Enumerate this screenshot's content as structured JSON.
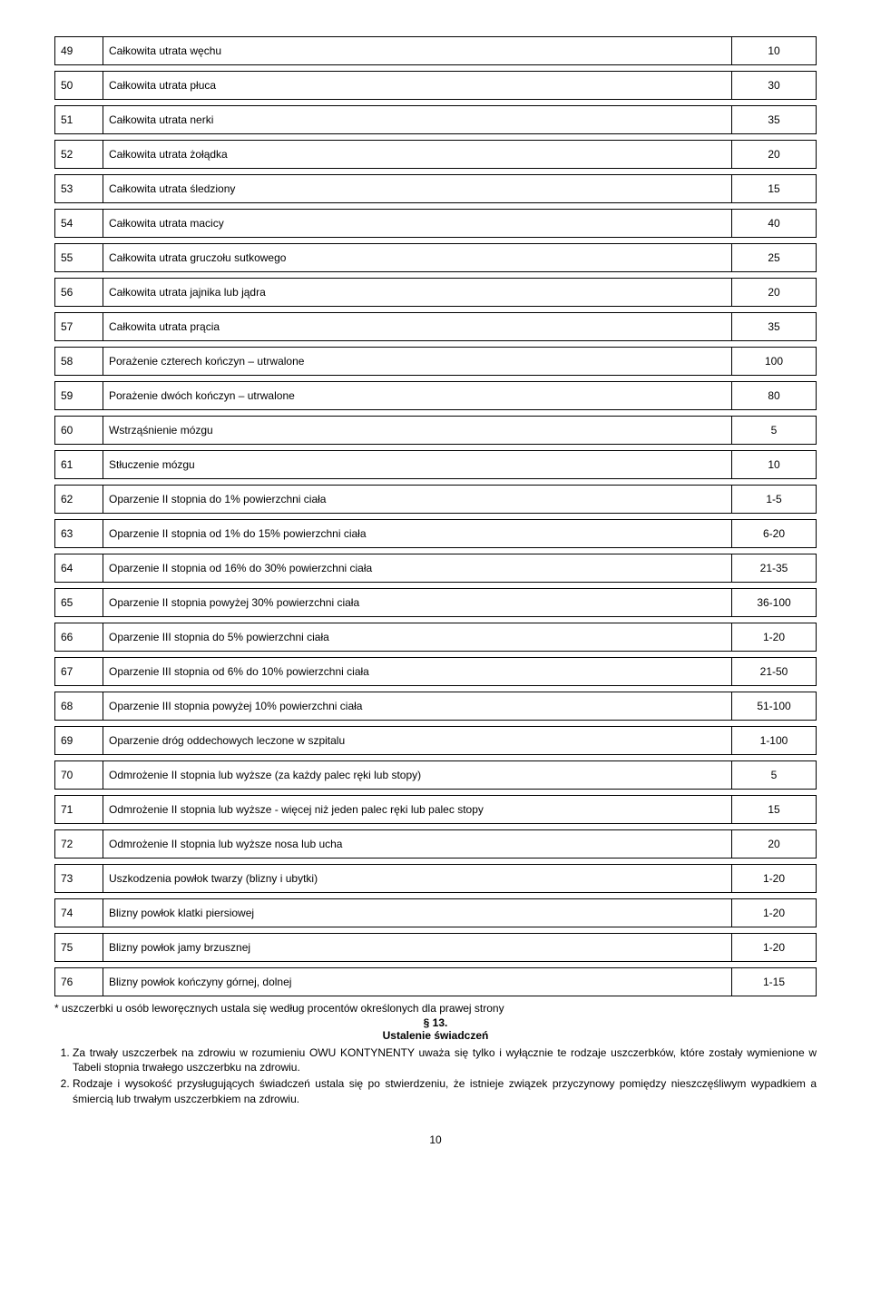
{
  "rows": [
    {
      "n": "49",
      "d": "Całkowita utrata węchu",
      "v": "10"
    },
    {
      "n": "50",
      "d": "Całkowita utrata płuca",
      "v": "30"
    },
    {
      "n": "51",
      "d": "Całkowita utrata nerki",
      "v": "35"
    },
    {
      "n": "52",
      "d": "Całkowita utrata żołądka",
      "v": "20"
    },
    {
      "n": "53",
      "d": "Całkowita utrata śledziony",
      "v": "15"
    },
    {
      "n": "54",
      "d": "Całkowita utrata macicy",
      "v": "40"
    },
    {
      "n": "55",
      "d": "Całkowita utrata gruczołu sutkowego",
      "v": "25"
    },
    {
      "n": "56",
      "d": "Całkowita utrata jajnika lub jądra",
      "v": "20"
    },
    {
      "n": "57",
      "d": "Całkowita utrata prącia",
      "v": "35"
    },
    {
      "n": "58",
      "d": "Porażenie czterech kończyn – utrwalone",
      "v": "100"
    },
    {
      "n": "59",
      "d": "Porażenie dwóch kończyn – utrwalone",
      "v": "80"
    },
    {
      "n": "60",
      "d": "Wstrząśnienie mózgu",
      "v": "5"
    },
    {
      "n": "61",
      "d": "Stłuczenie mózgu",
      "v": "10"
    },
    {
      "n": "62",
      "d": "Oparzenie II stopnia do 1% powierzchni ciała",
      "v": "1-5"
    },
    {
      "n": "63",
      "d": "Oparzenie II stopnia od 1% do 15% powierzchni ciała",
      "v": "6-20"
    },
    {
      "n": "64",
      "d": "Oparzenie II stopnia od 16% do 30% powierzchni ciała",
      "v": "21-35"
    },
    {
      "n": "65",
      "d": "Oparzenie II stopnia powyżej 30% powierzchni ciała",
      "v": "36-100"
    },
    {
      "n": "66",
      "d": "Oparzenie III stopnia do 5% powierzchni ciała",
      "v": "1-20"
    },
    {
      "n": "67",
      "d": "Oparzenie III stopnia od 6% do 10% powierzchni ciała",
      "v": "21-50"
    },
    {
      "n": "68",
      "d": "Oparzenie III stopnia powyżej 10% powierzchni ciała",
      "v": "51-100"
    },
    {
      "n": "69",
      "d": "Oparzenie dróg oddechowych leczone w szpitalu",
      "v": "1-100"
    },
    {
      "n": "70",
      "d": "Odmrożenie II stopnia lub wyższe (za każdy palec ręki lub stopy)",
      "v": "5"
    },
    {
      "n": "71",
      "d": "Odmrożenie II stopnia lub wyższe - więcej niż jeden palec ręki lub palec stopy",
      "v": "15"
    },
    {
      "n": "72",
      "d": "Odmrożenie II stopnia lub wyższe nosa lub ucha",
      "v": "20"
    },
    {
      "n": "73",
      "d": "Uszkodzenia powłok twarzy (blizny i ubytki)",
      "v": "1-20"
    },
    {
      "n": "74",
      "d": "Blizny powłok klatki piersiowej",
      "v": "1-20"
    },
    {
      "n": "75",
      "d": "Blizny powłok jamy brzusznej",
      "v": "1-20"
    },
    {
      "n": "76",
      "d": "Blizny powłok kończyny górnej, dolnej",
      "v": "1-15"
    }
  ],
  "footnote": "* uszczerbki u osób leworęcznych ustala się według procentów określonych dla prawej strony",
  "section_num": "§ 13.",
  "section_title": "Ustalenie świadczeń",
  "para1": "Za trwały uszczerbek na zdrowiu w rozumieniu OWU KONTYNENTY uważa się tylko i wyłącznie te rodzaje uszczerbków, które zostały wymienione w Tabeli stopnia trwałego uszczerbku  na zdrowiu.",
  "para2": "Rodzaje i wysokość przysługujących świadczeń ustala się po stwierdzeniu, że istnieje związek przyczynowy pomiędzy nieszczęśliwym wypadkiem a śmiercią lub trwałym uszczerbkiem na zdrowiu.",
  "page_number": "10"
}
